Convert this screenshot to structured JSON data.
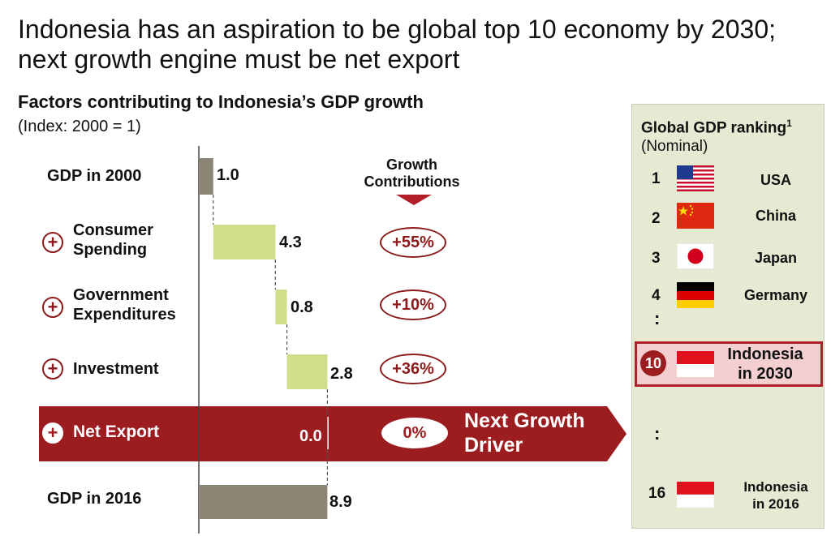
{
  "title": "Indonesia has an aspiration to be global top 10 economy by 2030; next growth engine must be net export",
  "chart_data": {
    "type": "bar",
    "title": "Factors contributing to Indonesia’s GDP growth",
    "subtitle": "(Index: 2000 = 1)",
    "categories": [
      "GDP in 2000",
      "Consumer Spending",
      "Government Expenditures",
      "Investment",
      "Net Export",
      "GDP in 2016"
    ],
    "values": [
      1.0,
      4.3,
      0.8,
      2.8,
      0.0,
      8.9
    ],
    "value_labels": [
      "1.0",
      "4.3",
      "0.8",
      "2.8",
      "0.0",
      "8.9"
    ],
    "contributions": [
      "",
      "+55%",
      "+10%",
      "+36%",
      "0%",
      ""
    ],
    "growth_header": "Growth Contributions",
    "colors": {
      "total": "#8a8574",
      "increment": "#d2dd8c",
      "accent": "#9b1d20",
      "panel": "#e6ead3"
    }
  },
  "row_labels": {
    "gdp2000": "GDP in 2000",
    "consumer_1": "Consumer",
    "consumer_2": "Spending",
    "gov_1": "Government",
    "gov_2": "Expenditures",
    "investment": "Investment",
    "netexport": "Net Export",
    "gdp2016": "GDP in 2016"
  },
  "plus_symbol": "+",
  "banner": {
    "line1": "Next Growth",
    "line2": "Driver"
  },
  "ranking": {
    "title": "Global GDP ranking",
    "footnote": "1",
    "subtitle": "(Nominal)",
    "colon": ":",
    "items": [
      {
        "rank": "1",
        "country": "USA",
        "flag": "usa-flag-icon"
      },
      {
        "rank": "2",
        "country": "China",
        "flag": "china-flag-icon"
      },
      {
        "rank": "3",
        "country": "Japan",
        "flag": "japan-flag-icon"
      },
      {
        "rank": "4",
        "country": "Germany",
        "flag": "germany-flag-icon"
      },
      {
        "rank": "10",
        "country_1": "Indonesia",
        "country_2": "in 2030",
        "flag": "indonesia-flag-icon"
      },
      {
        "rank": "16",
        "country_1": "Indonesia",
        "country_2": "in 2016",
        "flag": "indonesia-flag-icon"
      }
    ]
  }
}
